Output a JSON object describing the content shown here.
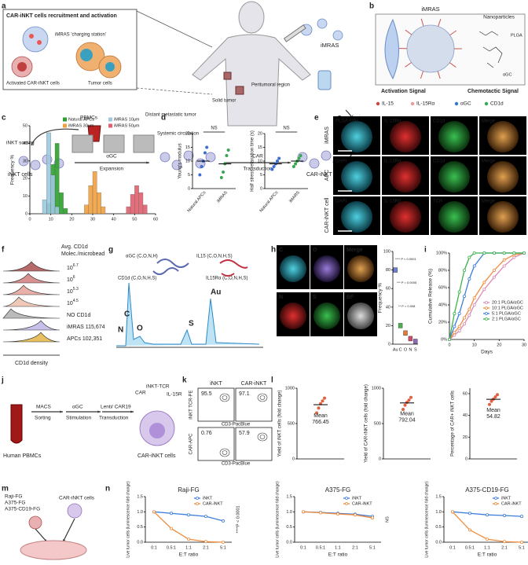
{
  "a": {
    "letter": "a",
    "box_title": "CAR-iNKT cells recruitment and activation",
    "imras_station": "iMRAS 'charging station'",
    "activated": "Activated CAR-iNKT cells",
    "tumor_cells": "Tumor cells",
    "imras": "iMRAS",
    "solid_tumor": "Solid tumor",
    "peritumoral": "Peritumoral region",
    "distant": "Distant metastatic tumor",
    "systemic": "Systemic circulation",
    "transfusion": "Transfusion",
    "pbmcs": "PBMCs",
    "inkt_sorting": "iNKT sorting",
    "agc": "αGC",
    "car": "CAR",
    "inkt_cells": "iNKT cells",
    "expansion": "Expansion",
    "transduction": "Transduction",
    "car_inkt_cells": "CAR-iNKT cells"
  },
  "b": {
    "letter": "b",
    "imras": "iMRAS",
    "nanoparticles": "Nanoparticles",
    "plga": "PLGA",
    "agc": "αGC",
    "activation_signal": "Activation Signal",
    "chemotactic_signal": "Chemotactic Signal",
    "legend": [
      "IL-15",
      "IL-15Rα",
      "αGC",
      "CD1d"
    ]
  },
  "c": {
    "letter": "c",
    "ylabel": "Frequency %",
    "xlim": [
      0,
      60
    ],
    "xticks": [
      0,
      10,
      20,
      30,
      40,
      50,
      60
    ],
    "ylim": [
      0,
      50
    ],
    "yticks": [
      0,
      10,
      20,
      30,
      40,
      50
    ],
    "series": [
      {
        "name": "Natural APCs",
        "color": "#2ca02c",
        "bins": [
          8,
          10,
          12,
          14,
          16,
          18
        ],
        "counts": [
          6,
          28,
          40,
          12,
          3
        ]
      },
      {
        "name": "iMRAS 10μm",
        "color": "#9ecae1",
        "bins": [
          6,
          8,
          10,
          12,
          14
        ],
        "counts": [
          8,
          46,
          22,
          4
        ]
      },
      {
        "name": "iMRAS 30μm",
        "color": "#f0a040",
        "bins": [
          26,
          28,
          30,
          32,
          34,
          36
        ],
        "counts": [
          5,
          16,
          24,
          12,
          4
        ]
      },
      {
        "name": "iMRAS 50μm",
        "color": "#e06070",
        "bins": [
          46,
          48,
          50,
          52,
          54,
          56
        ],
        "counts": [
          4,
          11,
          16,
          12,
          5
        ]
      }
    ]
  },
  "d": {
    "letter": "d",
    "colors": [
      "#3b6fd4",
      "#3aa655"
    ],
    "charts": [
      {
        "ylabel": "Young's modulus",
        "categories": [
          "Natural APCs",
          "iMRAS"
        ],
        "points": [
          [
            5,
            8,
            10,
            13,
            15
          ],
          [
            4,
            6,
            9,
            12,
            14
          ]
        ],
        "means": [
          10,
          9
        ],
        "ylim": [
          0,
          20
        ],
        "yticks": [
          0,
          5,
          10,
          15,
          20
        ],
        "annotation": "NS"
      },
      {
        "ylabel": "Half stress relaxation time (s)",
        "categories": [
          "Natural APCs",
          "iMARS"
        ],
        "points": [
          [
            7,
            8,
            9,
            10,
            11
          ],
          [
            8,
            9,
            10,
            11,
            12
          ]
        ],
        "means": [
          9,
          10
        ],
        "ylim": [
          0,
          20
        ],
        "yticks": [
          0,
          5,
          10,
          15,
          20
        ],
        "annotation": "NS"
      }
    ]
  },
  "e": {
    "letter": "e",
    "rows": [
      {
        "name": "iMRAS",
        "channels": [
          "PLGA-NPs",
          "IL-15Rα",
          "CD1d",
          "Merge"
        ]
      },
      {
        "name": "APC",
        "channels": [
          "DAPI",
          "IL-15Rα",
          "CD1d",
          "Merge"
        ]
      },
      {
        "name": "CAR-iNKT cell",
        "channels": [
          "DAPI",
          "IL-15Rβ",
          "TCR",
          "Merge"
        ]
      }
    ]
  },
  "f": {
    "letter": "f",
    "title": [
      "Avg. CD1d",
      "Molec./microbead"
    ],
    "rows": [
      {
        "base": "10",
        "exp": "6.7"
      },
      {
        "base": "10",
        "exp": "6"
      },
      {
        "base": "10",
        "exp": "5.3"
      },
      {
        "base": "10",
        "exp": "4.5"
      },
      {
        "text": "NO CD1d"
      },
      {
        "text": "iMRAS 115,674"
      },
      {
        "text": "APCs 102,351"
      }
    ],
    "xlabel": "CD1d density"
  },
  "g": {
    "letter": "g",
    "molecules": [
      "αGC (C,O,N,H)",
      "IL15 (C,O,N,H,S)",
      "CD1d (C,O,N,H,S)",
      "IL15Rα (C,O,N,H,S)"
    ],
    "peaks": [
      "C",
      "N",
      "O",
      "S",
      "Au"
    ]
  },
  "h": {
    "letter": "h",
    "tiles": [
      "C",
      "O",
      "Merge",
      "N",
      "S",
      "BF"
    ],
    "chart": {
      "ylabel": "Frequency %",
      "categories": [
        "Au",
        "C",
        "O",
        "N",
        "S"
      ],
      "values": [
        80,
        20,
        12,
        6,
        3
      ],
      "ylim": [
        0,
        100
      ],
      "yticks": [
        0,
        20,
        40,
        60,
        80,
        100
      ],
      "colors": [
        "#6a7fd8",
        "#4caf50",
        "#e07b39",
        "#d04a6a",
        "#8a6ab8"
      ],
      "annotations": [
        "**** P < 0.0001",
        "*** P = 0.0005",
        "** P = 0.008"
      ]
    }
  },
  "i": {
    "letter": "i",
    "chart": {
      "ylabel": "Cumulative Release (%)",
      "xlabel": "Days",
      "x": [
        0,
        2,
        4,
        6,
        8,
        10,
        14,
        18,
        22,
        26,
        30
      ],
      "xlim": [
        0,
        30
      ],
      "xticks": [
        0,
        10,
        20,
        30
      ],
      "ylim": [
        0,
        100
      ],
      "yticks": [
        {
          "value": 0,
          "label": "0%"
        },
        {
          "value": 20,
          "label": "20%"
        },
        {
          "value": 40,
          "label": "40%"
        },
        {
          "value": 60,
          "label": "60%"
        },
        {
          "value": 80,
          "label": "80%"
        },
        {
          "value": 100,
          "label": "100%"
        }
      ],
      "series": [
        {
          "name": "20:1 PLGA/αGC",
          "color": "#d98cb3",
          "values": [
            0,
            5,
            10,
            18,
            28,
            40,
            58,
            72,
            85,
            95,
            100
          ]
        },
        {
          "name": "10:1 PLGA/αGC",
          "color": "#f08c3c",
          "values": [
            0,
            8,
            15,
            25,
            35,
            48,
            66,
            80,
            92,
            98,
            100
          ]
        },
        {
          "name": "5:1 PLGA/αGC",
          "color": "#3c7ddc",
          "values": [
            0,
            15,
            30,
            50,
            70,
            85,
            100,
            100,
            100,
            100,
            100
          ]
        },
        {
          "name": "2:1 PLGA/αGC",
          "color": "#3cb44b",
          "values": [
            0,
            30,
            55,
            80,
            95,
            100,
            100,
            100,
            100,
            100,
            100
          ]
        }
      ]
    }
  },
  "j": {
    "letter": "j",
    "texts": {
      "pbmcs": "Human PBMCs",
      "macs": "MACS",
      "sorting": "Sorting",
      "agc": "αGC",
      "stimulation": "Stimulation",
      "lenti": "Lenti/ CAR19",
      "transduction": "Transduction",
      "car": "CAR",
      "tcr": "iNKT-TCR",
      "il15r": "IL-15R",
      "cells": "CAR-iNKT cells"
    }
  },
  "k": {
    "letter": "k",
    "columns": [
      "iNKT",
      "CAR-iNKT"
    ],
    "rows": [
      {
        "label": "iNKT TCR-PE",
        "values": [
          95.5,
          97.1
        ]
      },
      {
        "label": "CAR-APC",
        "values": [
          0.76,
          57.9
        ]
      }
    ],
    "xlabel": "CD3-PacBlue"
  },
  "l": {
    "letter": "l",
    "mean_label": "Mean",
    "charts": [
      {
        "ylabel": "Yield of iNKT cells (fold change)",
        "points": [
          650,
          720,
          780,
          820,
          860
        ],
        "mean": 766.45,
        "ylim": [
          0,
          1000
        ],
        "yticks": [
          0,
          500,
          1000
        ]
      },
      {
        "ylabel": "Yield of CAR-iNKT cells (fold change)",
        "points": [
          700,
          760,
          800,
          830,
          870
        ],
        "mean": 792.04,
        "ylim": [
          0,
          1000
        ],
        "yticks": [
          0,
          500,
          1000
        ]
      },
      {
        "ylabel": "Percentage of CAR+ iNKT cells",
        "points": [
          50,
          53,
          55,
          57,
          59
        ],
        "mean": 54.82,
        "ylim": [
          0,
          65
        ],
        "yticks": [
          0,
          20,
          40,
          60
        ]
      }
    ]
  },
  "m": {
    "letter": "m",
    "targets": [
      "Raji-FG",
      "A375-FG",
      "A375-CD19-FG"
    ],
    "effector": "CAR-iNKT cells"
  },
  "n": {
    "letter": "n",
    "charts": [
      {
        "title": "Raji-FG",
        "ylabel": "Live tumor cells (luminescence fold change)",
        "xlabel": "E:T ratio",
        "categories": [
          "0:1",
          "0.5:1",
          "1:1",
          "2:1",
          "5:1"
        ],
        "ylim": [
          0,
          1.5
        ],
        "yticks": [
          {
            "value": 0,
            "label": "0.0"
          },
          0.5,
          {
            "value": 1,
            "label": "1.0"
          },
          1.5
        ],
        "series": [
          {
            "name": "iNKT",
            "color": "#3c7ddc",
            "values": [
              1,
              0.95,
              0.9,
              0.85,
              0.7
            ]
          },
          {
            "name": "CAR-iNKT",
            "color": "#f08c3c",
            "values": [
              1,
              0.45,
              0.1,
              0.02,
              0
            ]
          }
        ],
        "annotation": "****P < 0.0001"
      },
      {
        "title": "A375-FG",
        "ylabel": "Live tumor cells (luminescence fold change)",
        "xlabel": "E:T ratio",
        "categories": [
          "0:1",
          "0.5:1",
          "1:1",
          "2:1",
          "5:1"
        ],
        "ylim": [
          0,
          1.5
        ],
        "yticks": [
          {
            "value": 0,
            "label": "0.0"
          },
          0.5,
          {
            "value": 1,
            "label": "1.0"
          },
          1.5
        ],
        "series": [
          {
            "name": "iNKT",
            "color": "#3c7ddc",
            "values": [
              1,
              0.98,
              0.95,
              0.92,
              0.85
            ]
          },
          {
            "name": "CAR-iNKT",
            "color": "#f08c3c",
            "values": [
              1,
              0.97,
              0.93,
              0.9,
              0.8
            ]
          }
        ],
        "annotation": "NS"
      },
      {
        "title": "A375-CD19-FG",
        "ylabel": "Live tumor cells (luminescence fold change)",
        "xlabel": "E:T ratio",
        "categories": [
          "0:1",
          "0.5:1",
          "1:1",
          "2:1",
          "5:1"
        ],
        "ylim": [
          0,
          1.5
        ],
        "yticks": [
          {
            "value": 0,
            "label": "0.0"
          },
          0.5,
          {
            "value": 1,
            "label": "1.0"
          },
          1.5
        ],
        "series": [
          {
            "name": "iNKT",
            "color": "#3c7ddc",
            "values": [
              1,
              0.95,
              0.9,
              0.88,
              0.85
            ]
          },
          {
            "name": "CAR-iNKT",
            "color": "#f08c3c",
            "values": [
              1,
              0.4,
              0.1,
              0.02,
              0
            ]
          }
        ],
        "annotation": "****P < 0.0001"
      }
    ]
  }
}
